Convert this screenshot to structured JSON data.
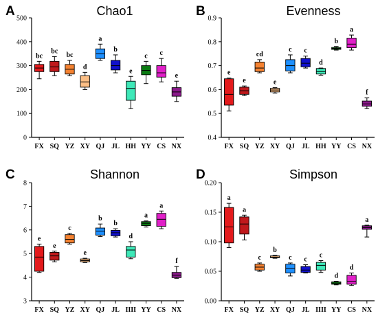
{
  "chart_data": [
    {
      "type": "boxplot",
      "panel_label": "A",
      "title": "Chao1",
      "categories": [
        "FX",
        "SQ",
        "YZ",
        "XY",
        "QJ",
        "JL",
        "HH",
        "YY",
        "CS",
        "NX"
      ],
      "ylim": [
        0,
        500
      ],
      "yticks": [
        "0",
        "100",
        "200",
        "300",
        "400",
        "500"
      ],
      "boxes": [
        {
          "min": 245,
          "q1": 275,
          "median": 290,
          "q3": 305,
          "max": 318,
          "letter": "bc",
          "color": "#e31a1c"
        },
        {
          "min": 258,
          "q1": 275,
          "median": 295,
          "q3": 318,
          "max": 338,
          "letter": "bc",
          "color": "#c0191c"
        },
        {
          "min": 258,
          "q1": 265,
          "median": 285,
          "q3": 305,
          "max": 322,
          "letter": "bc",
          "color": "#f58231"
        },
        {
          "min": 200,
          "q1": 210,
          "median": 232,
          "q3": 258,
          "max": 272,
          "letter": "d",
          "color": "#fcbf86"
        },
        {
          "min": 322,
          "q1": 330,
          "median": 350,
          "q3": 370,
          "max": 390,
          "letter": "a",
          "color": "#1e90ff"
        },
        {
          "min": 270,
          "q1": 282,
          "median": 300,
          "q3": 322,
          "max": 345,
          "letter": "b",
          "color": "#1010cc"
        },
        {
          "min": 120,
          "q1": 155,
          "median": 205,
          "q3": 235,
          "max": 255,
          "letter": "e",
          "color": "#3ee8b8"
        },
        {
          "min": 225,
          "q1": 262,
          "median": 280,
          "q3": 300,
          "max": 318,
          "letter": "c",
          "color": "#0a7a12"
        },
        {
          "min": 232,
          "q1": 252,
          "median": 270,
          "q3": 300,
          "max": 330,
          "letter": "c",
          "color": "#e020c8"
        },
        {
          "min": 150,
          "q1": 172,
          "median": 190,
          "q3": 208,
          "max": 235,
          "letter": "e",
          "color": "#8b1a8b"
        }
      ]
    },
    {
      "type": "boxplot",
      "panel_label": "B",
      "title": "Evenness",
      "categories": [
        "FX",
        "SQ",
        "YZ",
        "XY",
        "QJ",
        "JL",
        "HH",
        "YY",
        "CS",
        "NX"
      ],
      "ylim": [
        0.4,
        0.9
      ],
      "yticks": [
        "0.4",
        "0.5",
        "0.6",
        "0.7",
        "0.8",
        "0.9"
      ],
      "boxes": [
        {
          "min": 0.51,
          "q1": 0.535,
          "median": 0.58,
          "q3": 0.645,
          "max": 0.648,
          "letter": "e",
          "color": "#e31a1c"
        },
        {
          "min": 0.575,
          "q1": 0.58,
          "median": 0.595,
          "q3": 0.61,
          "max": 0.615,
          "letter": "e",
          "color": "#c0191c"
        },
        {
          "min": 0.67,
          "q1": 0.675,
          "median": 0.69,
          "q3": 0.715,
          "max": 0.725,
          "letter": "cd",
          "color": "#f58231"
        },
        {
          "min": 0.585,
          "q1": 0.59,
          "median": 0.598,
          "q3": 0.605,
          "max": 0.608,
          "letter": "e",
          "color": "#fcbf86"
        },
        {
          "min": 0.67,
          "q1": 0.678,
          "median": 0.7,
          "q3": 0.725,
          "max": 0.745,
          "letter": "c",
          "color": "#1e90ff"
        },
        {
          "min": 0.69,
          "q1": 0.695,
          "median": 0.71,
          "q3": 0.73,
          "max": 0.74,
          "letter": "c",
          "color": "#1010cc"
        },
        {
          "min": 0.66,
          "q1": 0.665,
          "median": 0.675,
          "q3": 0.688,
          "max": 0.69,
          "letter": "d",
          "color": "#3ee8b8"
        },
        {
          "min": 0.765,
          "q1": 0.768,
          "median": 0.772,
          "q3": 0.776,
          "max": 0.78,
          "letter": "b",
          "color": "#0a7a12"
        },
        {
          "min": 0.765,
          "q1": 0.775,
          "median": 0.79,
          "q3": 0.815,
          "max": 0.828,
          "letter": "a",
          "color": "#e020c8"
        },
        {
          "min": 0.52,
          "q1": 0.53,
          "median": 0.54,
          "q3": 0.552,
          "max": 0.565,
          "letter": "f",
          "color": "#8b1a8b"
        }
      ]
    },
    {
      "type": "boxplot",
      "panel_label": "C",
      "title": "Shannon",
      "categories": [
        "FX",
        "SQ",
        "YZ",
        "XY",
        "QJ",
        "JL",
        "IIII",
        "YY",
        "CS",
        "NX"
      ],
      "ylim": [
        3,
        8
      ],
      "yticks": [
        "3",
        "4",
        "5",
        "6",
        "7",
        "8"
      ],
      "boxes": [
        {
          "min": 4.2,
          "q1": 4.25,
          "median": 4.85,
          "q3": 5.3,
          "max": 5.4,
          "letter": "e",
          "color": "#e31a1c"
        },
        {
          "min": 4.65,
          "q1": 4.72,
          "median": 4.9,
          "q3": 5.05,
          "max": 5.1,
          "letter": "e",
          "color": "#c0191c"
        },
        {
          "min": 5.4,
          "q1": 5.45,
          "median": 5.6,
          "q3": 5.8,
          "max": 5.85,
          "letter": "c",
          "color": "#f58231"
        },
        {
          "min": 4.62,
          "q1": 4.65,
          "median": 4.7,
          "q3": 4.77,
          "max": 4.8,
          "letter": "e",
          "color": "#fcbf86"
        },
        {
          "min": 5.72,
          "q1": 5.78,
          "median": 5.95,
          "q3": 6.08,
          "max": 6.25,
          "letter": "b",
          "color": "#1e90ff"
        },
        {
          "min": 5.7,
          "q1": 5.75,
          "median": 5.88,
          "q3": 5.98,
          "max": 6.05,
          "letter": "b",
          "color": "#1010cc"
        },
        {
          "min": 4.78,
          "q1": 4.85,
          "median": 5.15,
          "q3": 5.3,
          "max": 5.5,
          "letter": "d",
          "color": "#3ee8b8"
        },
        {
          "min": 6.12,
          "q1": 6.18,
          "median": 6.28,
          "q3": 6.35,
          "max": 6.38,
          "letter": "a",
          "color": "#0a7a12"
        },
        {
          "min": 6.05,
          "q1": 6.15,
          "median": 6.45,
          "q3": 6.7,
          "max": 6.8,
          "letter": "a",
          "color": "#e020c8"
        },
        {
          "min": 3.95,
          "q1": 3.98,
          "median": 4.08,
          "q3": 4.2,
          "max": 4.45,
          "letter": "f",
          "color": "#8b1a8b"
        }
      ]
    },
    {
      "type": "boxplot",
      "panel_label": "D",
      "title": "Simpson",
      "categories": [
        "FX",
        "SQ",
        "YZ",
        "XY",
        "QJ",
        "JL",
        "IIII",
        "YY",
        "CS",
        "NX"
      ],
      "ylim": [
        0,
        0.2
      ],
      "yticks": [
        "0.00",
        "0.05",
        "0.10",
        "0.15",
        "0.20"
      ],
      "boxes": [
        {
          "min": 0.09,
          "q1": 0.098,
          "median": 0.125,
          "q3": 0.158,
          "max": 0.165,
          "letter": "a",
          "color": "#e31a1c"
        },
        {
          "min": 0.103,
          "q1": 0.113,
          "median": 0.13,
          "q3": 0.142,
          "max": 0.145,
          "letter": "a",
          "color": "#c0191c"
        },
        {
          "min": 0.05,
          "q1": 0.052,
          "median": 0.057,
          "q3": 0.062,
          "max": 0.064,
          "letter": "c",
          "color": "#f58231"
        },
        {
          "min": 0.072,
          "q1": 0.073,
          "median": 0.074,
          "q3": 0.076,
          "max": 0.077,
          "letter": "b",
          "color": "#fcbf86"
        },
        {
          "min": 0.042,
          "q1": 0.047,
          "median": 0.055,
          "q3": 0.062,
          "max": 0.064,
          "letter": "c",
          "color": "#1e90ff"
        },
        {
          "min": 0.047,
          "q1": 0.048,
          "median": 0.052,
          "q3": 0.058,
          "max": 0.061,
          "letter": "c",
          "color": "#1010cc"
        },
        {
          "min": 0.048,
          "q1": 0.052,
          "median": 0.06,
          "q3": 0.065,
          "max": 0.068,
          "letter": "c",
          "color": "#3ee8b8"
        },
        {
          "min": 0.027,
          "q1": 0.028,
          "median": 0.03,
          "q3": 0.032,
          "max": 0.033,
          "letter": "d",
          "color": "#0a7a12"
        },
        {
          "min": 0.026,
          "q1": 0.028,
          "median": 0.033,
          "q3": 0.043,
          "max": 0.047,
          "letter": "d",
          "color": "#e020c8"
        },
        {
          "min": 0.108,
          "q1": 0.121,
          "median": 0.124,
          "q3": 0.127,
          "max": 0.128,
          "letter": "a",
          "color": "#8b1a8b"
        }
      ]
    }
  ]
}
